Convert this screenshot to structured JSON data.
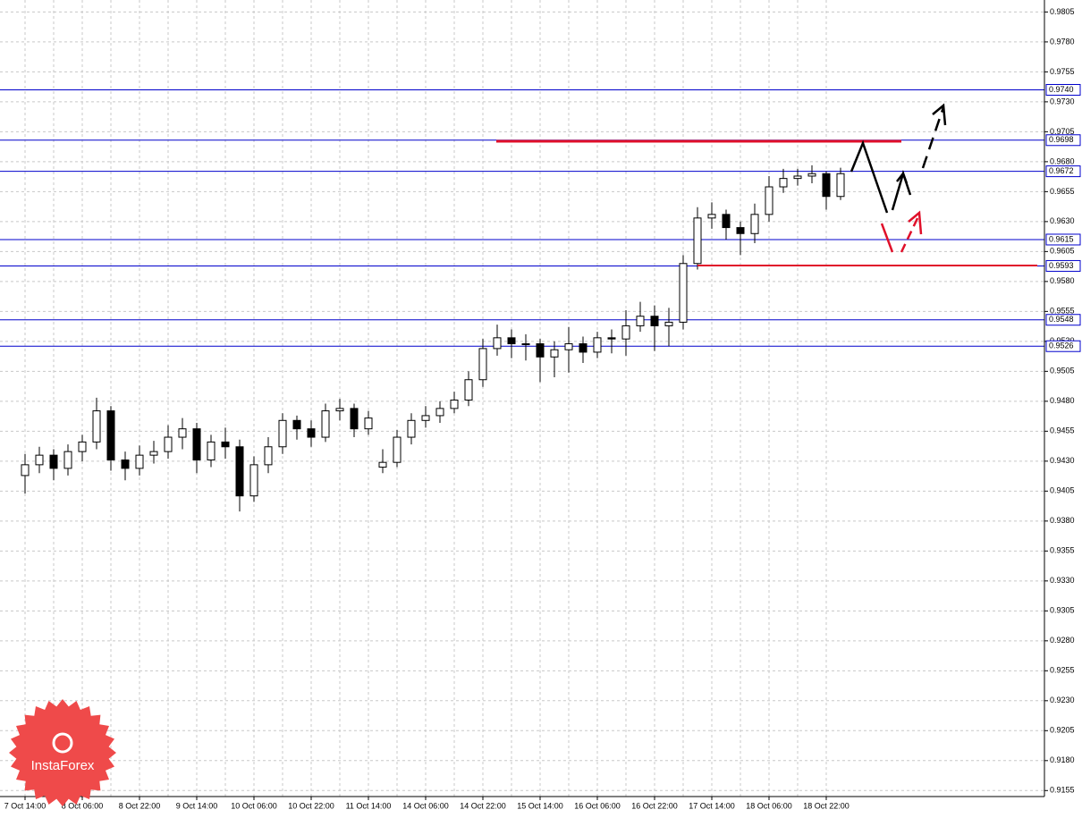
{
  "chart_data": {
    "type": "candlestick",
    "categories": [
      "7 Oct 14:00",
      null,
      null,
      null,
      "8 Oct 06:00",
      null,
      null,
      null,
      "8 Oct 22:00",
      null,
      null,
      null,
      "9 Oct 14:00",
      null,
      null,
      null,
      "10 Oct 06:00",
      null,
      null,
      null,
      "10 Oct 22:00",
      null,
      null,
      null,
      "11 Oct 14:00",
      null,
      null,
      null,
      "14 Oct 06:00",
      null,
      null,
      null,
      "14 Oct 22:00",
      null,
      null,
      null,
      "15 Oct 14:00",
      null,
      null,
      null,
      "16 Oct 06:00",
      null,
      null,
      null,
      "16 Oct 22:00",
      null,
      null,
      null,
      "17 Oct 14:00",
      null,
      null,
      null,
      "18 Oct 06:00",
      null,
      null,
      null,
      "18 Oct 22:00",
      null
    ],
    "open": [
      0.9418,
      0.9427,
      0.9435,
      0.9424,
      0.9438,
      0.9446,
      0.9472,
      0.9431,
      0.9424,
      0.9435,
      0.9438,
      0.945,
      0.9457,
      0.9431,
      0.9446,
      0.9442,
      0.9401,
      0.9427,
      0.9442,
      0.9464,
      0.9457,
      0.945,
      0.9472,
      0.9474,
      0.9457,
      0.9425,
      0.9429,
      0.945,
      0.9464,
      0.9468,
      0.9474,
      0.9481,
      0.9498,
      0.9524,
      0.9533,
      0.9528,
      0.9528,
      0.9517,
      0.9523,
      0.9528,
      0.9521,
      0.9533,
      0.9532,
      0.9543,
      0.9551,
      0.9543,
      0.9546,
      0.9595,
      0.9633,
      0.9636,
      0.9625,
      0.962,
      0.9636,
      0.9659,
      0.9666,
      0.9668,
      0.967,
      0.9651
    ],
    "high": [
      0.9436,
      0.9442,
      0.944,
      0.9444,
      0.9452,
      0.9483,
      0.9476,
      0.9438,
      0.9443,
      0.9447,
      0.946,
      0.9466,
      0.9462,
      0.9452,
      0.9458,
      0.9448,
      0.9434,
      0.945,
      0.947,
      0.9468,
      0.9464,
      0.9478,
      0.9482,
      0.9478,
      0.9472,
      0.944,
      0.9456,
      0.947,
      0.9476,
      0.948,
      0.9488,
      0.9505,
      0.9532,
      0.9544,
      0.954,
      0.9536,
      0.9532,
      0.953,
      0.9542,
      0.9534,
      0.9538,
      0.954,
      0.9556,
      0.9563,
      0.956,
      0.9558,
      0.9602,
      0.9642,
      0.9646,
      0.964,
      0.963,
      0.9645,
      0.9668,
      0.9674,
      0.9674,
      0.9677,
      0.9672,
      0.9675
    ],
    "low": [
      0.9403,
      0.942,
      0.9414,
      0.9418,
      0.943,
      0.944,
      0.9422,
      0.9414,
      0.9418,
      0.9428,
      0.9432,
      0.944,
      0.942,
      0.9425,
      0.9432,
      0.9388,
      0.9396,
      0.942,
      0.9436,
      0.9448,
      0.9442,
      0.9446,
      0.9464,
      0.945,
      0.9452,
      0.942,
      0.9425,
      0.9444,
      0.9458,
      0.9462,
      0.947,
      0.9476,
      0.9492,
      0.9518,
      0.9516,
      0.9514,
      0.9496,
      0.95,
      0.9504,
      0.9512,
      0.9516,
      0.952,
      0.9518,
      0.9538,
      0.9522,
      0.9526,
      0.954,
      0.959,
      0.9624,
      0.9615,
      0.9602,
      0.9612,
      0.963,
      0.9654,
      0.966,
      0.9662,
      0.964,
      0.9648
    ],
    "close": [
      0.9427,
      0.9435,
      0.9424,
      0.9438,
      0.9446,
      0.9472,
      0.9431,
      0.9424,
      0.9435,
      0.9438,
      0.945,
      0.9457,
      0.9431,
      0.9446,
      0.9442,
      0.9401,
      0.9427,
      0.9442,
      0.9464,
      0.9457,
      0.945,
      0.9472,
      0.9474,
      0.9457,
      0.9466,
      0.9429,
      0.945,
      0.9464,
      0.9468,
      0.9474,
      0.9481,
      0.9498,
      0.9524,
      0.9533,
      0.9528,
      0.9528,
      0.9517,
      0.9523,
      0.9528,
      0.9521,
      0.9533,
      0.9532,
      0.9543,
      0.9551,
      0.9543,
      0.9546,
      0.9595,
      0.9633,
      0.9636,
      0.9625,
      0.962,
      0.9636,
      0.9659,
      0.9666,
      0.9668,
      0.967,
      0.9651,
      0.967
    ],
    "ylim": [
      0.915,
      0.9815
    ],
    "yticks": [
      0.9805,
      {
        "value": 0.978,
        "label": "0.9780"
      },
      0.9755,
      {
        "value": 0.973,
        "label": "0.9730"
      },
      0.9705,
      {
        "value": 0.968,
        "label": "0.9680"
      },
      0.9655,
      {
        "value": 0.963,
        "label": "0.9630"
      },
      0.9605,
      {
        "value": 0.958,
        "label": "0.9580"
      },
      0.9555,
      {
        "value": 0.953,
        "label": "0.9530"
      },
      0.9505,
      {
        "value": 0.948,
        "label": "0.9480"
      },
      0.9455,
      {
        "value": 0.943,
        "label": "0.9430"
      },
      0.9405,
      {
        "value": 0.938,
        "label": "0.9380"
      },
      0.9355,
      {
        "value": 0.933,
        "label": "0.9330"
      },
      0.9305,
      {
        "value": 0.928,
        "label": "0.9280"
      },
      0.9255,
      {
        "value": 0.923,
        "label": "0.9230"
      },
      0.9205,
      {
        "value": 0.918,
        "label": "0.9180"
      },
      0.9155
    ],
    "levels": [
      {
        "value": 0.974,
        "label": "0.9740"
      },
      0.9698,
      0.9672,
      0.9615,
      0.9593,
      0.9548,
      0.9526
    ],
    "grid": true,
    "up_color": "#ffffff",
    "down_color": "#000000",
    "level_color": "#0000cc"
  },
  "logo": {
    "text": "InstaForex"
  }
}
